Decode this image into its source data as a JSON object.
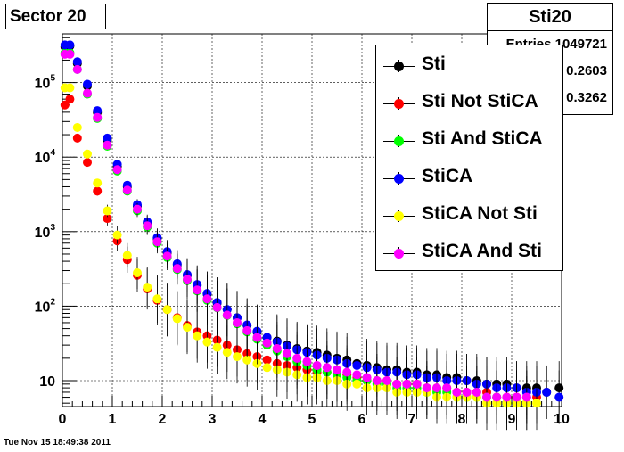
{
  "title_left": "Sector 20",
  "stats_box": {
    "title": "Sti20",
    "rows": [
      "Entries 1049721",
      "0.2603",
      "0.3262"
    ]
  },
  "legend": [
    {
      "label": "Sti",
      "color": "#000000"
    },
    {
      "label": "Sti Not StiCA",
      "color": "#ff0000"
    },
    {
      "label": "Sti And StiCA",
      "color": "#00ff00"
    },
    {
      "label": "StiCA",
      "color": "#0000ff"
    },
    {
      "label": "StiCA Not Sti",
      "color": "#ffff00"
    },
    {
      "label": "StiCA And Sti",
      "color": "#ff00ff"
    }
  ],
  "timestamp": "Tue Nov 15 18:49:38 2011",
  "chart_data": {
    "type": "scatter",
    "title": "Sector 20",
    "xlim": [
      0,
      10
    ],
    "ylim": [
      4.5,
      450000
    ],
    "yscale": "log",
    "grid": true,
    "legend_position": "top-right",
    "x_ticks": [
      "0",
      "1",
      "2",
      "3",
      "4",
      "5",
      "6",
      "7",
      "8",
      "9",
      "10"
    ],
    "y_ticks": [
      {
        "value": 10,
        "label": "10"
      },
      {
        "value": 100,
        "label": "10^2"
      },
      {
        "value": 1000,
        "label": "10^3"
      },
      {
        "value": 10000,
        "label": "10^4"
      },
      {
        "value": 100000,
        "label": "10^5"
      }
    ],
    "series": [
      {
        "name": "Sti",
        "color": "#000000",
        "x": [
          0.05,
          0.15,
          0.3,
          0.5,
          0.7,
          0.9,
          1.1,
          1.3,
          1.5,
          1.7,
          1.9,
          2.1,
          2.3,
          2.5,
          2.7,
          2.9,
          3.1,
          3.3,
          3.5,
          3.7,
          3.9,
          4.1,
          4.3,
          4.5,
          4.7,
          4.9,
          5.1,
          5.3,
          5.5,
          5.7,
          5.9,
          6.1,
          6.3,
          6.5,
          6.7,
          6.9,
          7.1,
          7.3,
          7.5,
          7.7,
          7.9,
          8.1,
          8.3,
          8.5,
          8.7,
          8.9,
          9.1,
          9.3,
          9.5,
          9.7,
          9.95
        ],
        "y": [
          300000,
          310000,
          180000,
          90000,
          40000,
          17000,
          7500,
          4000,
          2200,
          1300,
          800,
          520,
          360,
          260,
          190,
          145,
          110,
          90,
          70,
          55,
          45,
          38,
          34,
          30,
          27,
          25,
          24,
          22,
          20,
          19,
          17,
          16,
          15,
          14,
          14,
          13,
          13,
          12,
          12,
          11,
          11,
          10,
          10,
          9,
          9,
          9,
          8,
          8,
          8,
          7,
          8
        ]
      },
      {
        "name": "Sti Not StiCA",
        "color": "#ff0000",
        "x": [
          0.05,
          0.15,
          0.3,
          0.5,
          0.7,
          0.9,
          1.1,
          1.3,
          1.5,
          1.7,
          1.9,
          2.1,
          2.3,
          2.5,
          2.7,
          2.9,
          3.1,
          3.3,
          3.5,
          3.7,
          3.9,
          4.1,
          4.3,
          4.5,
          4.7,
          4.9,
          5.1,
          5.3,
          5.5,
          5.7,
          5.9,
          6.1,
          6.3,
          6.5,
          6.7,
          6.9,
          7.1,
          7.3,
          7.5,
          7.7,
          7.9,
          8.1,
          8.3,
          8.5,
          8.7,
          8.9,
          9.1,
          9.3,
          9.5
        ],
        "y": [
          50000,
          60000,
          18000,
          8500,
          3500,
          1500,
          750,
          420,
          260,
          170,
          120,
          90,
          70,
          55,
          45,
          40,
          35,
          30,
          26,
          23,
          21,
          19,
          17,
          16,
          15,
          14,
          13,
          13,
          12,
          12,
          11,
          10,
          10,
          10,
          9,
          9,
          9,
          8,
          8,
          8,
          7,
          7,
          7,
          7,
          6,
          6,
          6,
          6,
          6
        ]
      },
      {
        "name": "Sti And StiCA",
        "color": "#00ff00",
        "x": [
          0.05,
          0.15,
          0.3,
          0.5,
          0.7,
          0.9,
          1.1,
          1.3,
          1.5,
          1.7,
          1.9,
          2.1,
          2.3,
          2.5,
          2.7,
          2.9,
          3.1,
          3.3,
          3.5,
          3.7,
          3.9,
          4.1,
          4.3,
          4.5,
          4.7,
          4.9,
          5.1,
          5.3,
          5.5,
          5.7,
          5.9,
          6.1,
          6.3,
          6.5,
          6.7,
          6.9,
          7.1,
          7.3,
          7.5,
          7.7,
          7.9,
          8.1,
          8.3,
          8.5,
          8.7,
          8.9,
          9.1,
          9.3
        ],
        "y": [
          250000,
          250000,
          150000,
          70000,
          33000,
          14000,
          6500,
          3500,
          1900,
          1150,
          700,
          450,
          310,
          220,
          160,
          120,
          95,
          75,
          58,
          45,
          36,
          30,
          25,
          21,
          18,
          16,
          14,
          13,
          12,
          11,
          10,
          10,
          9,
          9,
          8,
          8,
          8,
          7,
          7,
          7,
          6,
          6,
          6,
          6,
          6,
          5,
          5,
          5
        ]
      },
      {
        "name": "StiCA",
        "color": "#0000ff",
        "x": [
          0.05,
          0.15,
          0.3,
          0.5,
          0.7,
          0.9,
          1.1,
          1.3,
          1.5,
          1.7,
          1.9,
          2.1,
          2.3,
          2.5,
          2.7,
          2.9,
          3.1,
          3.3,
          3.5,
          3.7,
          3.9,
          4.1,
          4.3,
          4.5,
          4.7,
          4.9,
          5.1,
          5.3,
          5.5,
          5.7,
          5.9,
          6.1,
          6.3,
          6.5,
          6.7,
          6.9,
          7.1,
          7.3,
          7.5,
          7.7,
          7.9,
          8.1,
          8.3,
          8.5,
          8.7,
          8.9,
          9.1,
          9.3,
          9.5,
          9.7,
          9.95
        ],
        "y": [
          320000,
          320000,
          190000,
          95000,
          42000,
          18000,
          8000,
          4200,
          2300,
          1350,
          830,
          540,
          370,
          265,
          195,
          148,
          112,
          90,
          70,
          56,
          46,
          38,
          33,
          29,
          26,
          24,
          22,
          20,
          19,
          17,
          16,
          15,
          14,
          13,
          13,
          12,
          12,
          11,
          11,
          10,
          10,
          10,
          9,
          9,
          8,
          8,
          8,
          7,
          7,
          7,
          6
        ]
      },
      {
        "name": "StiCA Not Sti",
        "color": "#ffff00",
        "x": [
          0.05,
          0.15,
          0.3,
          0.5,
          0.7,
          0.9,
          1.1,
          1.3,
          1.5,
          1.7,
          1.9,
          2.1,
          2.3,
          2.5,
          2.7,
          2.9,
          3.1,
          3.3,
          3.5,
          3.7,
          3.9,
          4.1,
          4.3,
          4.5,
          4.7,
          4.9,
          5.1,
          5.3,
          5.5,
          5.7,
          5.9,
          6.1,
          6.3,
          6.5,
          6.7,
          6.9,
          7.1,
          7.3,
          7.5,
          7.7,
          7.9,
          8.1,
          8.3,
          8.5,
          8.7,
          8.9,
          9.1,
          9.3,
          9.5
        ],
        "y": [
          85000,
          85000,
          25000,
          11000,
          4500,
          1900,
          900,
          480,
          280,
          180,
          125,
          90,
          68,
          52,
          40,
          33,
          28,
          24,
          21,
          19,
          17,
          15,
          14,
          13,
          12,
          11,
          11,
          10,
          10,
          9,
          9,
          8,
          8,
          8,
          7,
          7,
          7,
          7,
          6,
          6,
          6,
          6,
          6,
          5,
          5,
          5,
          5,
          5,
          5
        ]
      },
      {
        "name": "StiCA And Sti",
        "color": "#ff00ff",
        "x": [
          0.05,
          0.15,
          0.3,
          0.5,
          0.7,
          0.9,
          1.1,
          1.3,
          1.5,
          1.7,
          1.9,
          2.1,
          2.3,
          2.5,
          2.7,
          2.9,
          3.1,
          3.3,
          3.5,
          3.7,
          3.9,
          4.1,
          4.3,
          4.5,
          4.7,
          4.9,
          5.1,
          5.3,
          5.5,
          5.7,
          5.9,
          6.1,
          6.3,
          6.5,
          6.7,
          6.9,
          7.1,
          7.3,
          7.5,
          7.7,
          7.9,
          8.1,
          8.3,
          8.5,
          8.7,
          8.9,
          9.1,
          9.3
        ],
        "y": [
          240000,
          240000,
          150000,
          72000,
          34000,
          14500,
          6800,
          3600,
          2000,
          1200,
          730,
          470,
          320,
          230,
          165,
          125,
          96,
          76,
          60,
          47,
          38,
          32,
          27,
          23,
          20,
          18,
          16,
          15,
          14,
          13,
          12,
          11,
          10,
          10,
          9,
          9,
          9,
          8,
          8,
          8,
          7,
          7,
          7,
          6,
          6,
          6,
          6,
          6
        ]
      }
    ]
  }
}
